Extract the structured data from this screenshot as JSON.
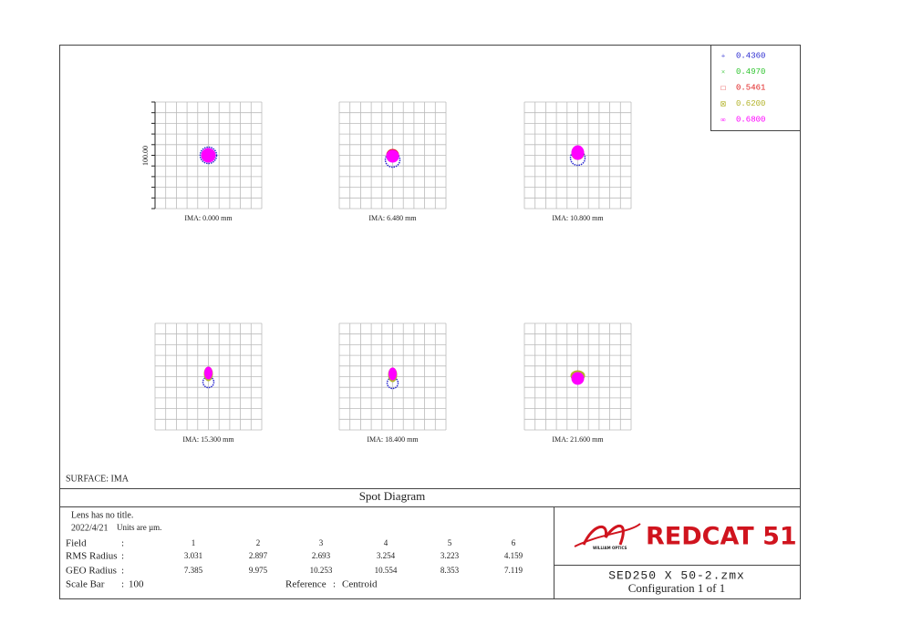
{
  "title": "Spot Diagram",
  "surface": "SURFACE: IMA",
  "legend": [
    {
      "label": "0.4360",
      "color": "#2b2bd0"
    },
    {
      "label": "0.4970",
      "color": "#2fc42f"
    },
    {
      "label": "0.5461",
      "color": "#e02020"
    },
    {
      "label": "0.6200",
      "color": "#b3b32a"
    },
    {
      "label": "0.6800",
      "color": "#ff00ff"
    }
  ],
  "scale_label": "100.00",
  "panels": [
    "IMA: 0.000 mm",
    "IMA: 6.480 mm",
    "IMA: 10.800 mm",
    "IMA: 15.300 mm",
    "IMA: 18.400 mm",
    "IMA: 21.600 mm"
  ],
  "info": {
    "lens": "Lens has no title.",
    "date": "2022/4/21",
    "units": "Units are µm.",
    "field_label": "Field",
    "fields": [
      1,
      2,
      3,
      4,
      5,
      6
    ],
    "rms_label": "RMS Radius",
    "rms": [
      3.031,
      2.897,
      2.693,
      3.254,
      3.223,
      4.159
    ],
    "geo_label": "GEO Radius",
    "geo": [
      7.385,
      9.975,
      10.253,
      10.554,
      8.353,
      7.119
    ],
    "scale_bar_label": "Scale Bar",
    "scale_bar": 100,
    "reference_label": "Reference",
    "reference": "Centroid"
  },
  "logo": "REDCAT 51",
  "logo_sub": "WILLIAM OPTICS",
  "file": "SED250 X 50-2.zmx",
  "configuration": "Configuration 1 of 1"
}
